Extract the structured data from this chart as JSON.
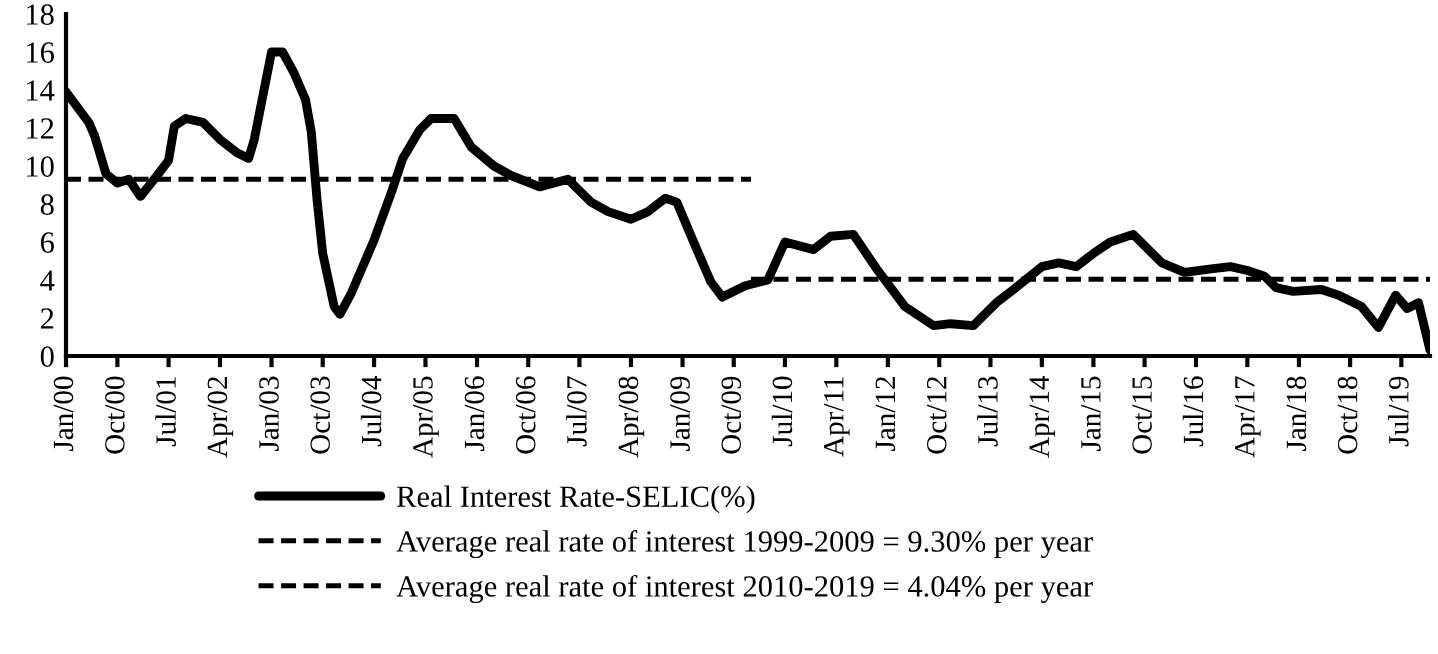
{
  "chart_data": {
    "type": "line",
    "xlim": [
      "2000-01",
      "2019-12"
    ],
    "ylim": [
      0,
      18
    ],
    "yticks": [
      0,
      2,
      4,
      6,
      8,
      10,
      12,
      14,
      16,
      18
    ],
    "xticks": [
      {
        "value": "2000-01",
        "label": "Jan/00"
      },
      {
        "value": "2000-10",
        "label": "Oct/00"
      },
      {
        "value": "2001-07",
        "label": "Jul/01"
      },
      {
        "value": "2002-04",
        "label": "Apr/02"
      },
      {
        "value": "2003-01",
        "label": "Jan/03"
      },
      {
        "value": "2003-10",
        "label": "Oct/03"
      },
      {
        "value": "2004-07",
        "label": "Jul/04"
      },
      {
        "value": "2005-04",
        "label": "Apr/05"
      },
      {
        "value": "2006-01",
        "label": "Jan/06"
      },
      {
        "value": "2006-10",
        "label": "Oct/06"
      },
      {
        "value": "2007-07",
        "label": "Jul/07"
      },
      {
        "value": "2008-04",
        "label": "Apr/08"
      },
      {
        "value": "2009-01",
        "label": "Jan/09"
      },
      {
        "value": "2009-10",
        "label": "Oct/09"
      },
      {
        "value": "2010-07",
        "label": "Jul/10"
      },
      {
        "value": "2011-04",
        "label": "Apr/11"
      },
      {
        "value": "2012-01",
        "label": "Jan/12"
      },
      {
        "value": "2012-10",
        "label": "Oct/12"
      },
      {
        "value": "2013-07",
        "label": "Jul/13"
      },
      {
        "value": "2014-04",
        "label": "Apr/14"
      },
      {
        "value": "2015-01",
        "label": "Jan/15"
      },
      {
        "value": "2015-10",
        "label": "Oct/15"
      },
      {
        "value": "2016-07",
        "label": "Jul/16"
      },
      {
        "value": "2017-04",
        "label": "Apr/17"
      },
      {
        "value": "2018-01",
        "label": "Jan/18"
      },
      {
        "value": "2018-10",
        "label": "Oct/18"
      },
      {
        "value": "2019-07",
        "label": "Jul/19"
      }
    ],
    "grid": false,
    "legend": "bottom",
    "marker": "none",
    "series": [
      {
        "name": "Real Interest Rate-SELIC(%)",
        "color": "#000000",
        "line_style": "solid",
        "x": [
          "2000-01",
          "2000-05",
          "2000-06",
          "2000-08",
          "2000-10",
          "2000-12",
          "2001-02",
          "2001-05",
          "2001-07",
          "2001-08",
          "2001-10",
          "2002-01",
          "2002-04",
          "2002-07",
          "2002-09",
          "2002-10",
          "2003-01",
          "2003-03",
          "2003-05",
          "2003-07",
          "2003-08",
          "2003-09",
          "2003-10",
          "2003-12",
          "2004-01",
          "2004-03",
          "2004-07",
          "2004-10",
          "2004-12",
          "2005-03",
          "2005-05",
          "2005-08",
          "2005-09",
          "2005-12",
          "2006-04",
          "2006-07",
          "2006-12",
          "2007-05",
          "2007-09",
          "2007-12",
          "2008-04",
          "2008-07",
          "2008-10",
          "2008-12",
          "2009-03",
          "2009-06",
          "2009-08",
          "2009-12",
          "2010-04",
          "2010-07",
          "2010-12",
          "2011-03",
          "2011-07",
          "2011-11",
          "2012-04",
          "2012-09",
          "2012-12",
          "2013-04",
          "2013-08",
          "2013-11",
          "2014-04",
          "2014-07",
          "2014-10",
          "2015-01",
          "2015-04",
          "2015-08",
          "2016-01",
          "2016-05",
          "2016-10",
          "2017-01",
          "2017-04",
          "2017-07",
          "2017-09",
          "2017-12",
          "2018-05",
          "2018-08",
          "2018-12",
          "2019-03",
          "2019-06",
          "2019-08",
          "2019-10",
          "2019-12"
        ],
        "values": [
          13.9,
          12.3,
          11.6,
          9.6,
          9.1,
          9.3,
          8.4,
          9.5,
          10.3,
          12.1,
          12.5,
          12.3,
          11.4,
          10.7,
          10.4,
          11.4,
          16.0,
          16.0,
          14.9,
          13.5,
          11.8,
          8.2,
          5.4,
          2.6,
          2.2,
          3.3,
          6.1,
          8.6,
          10.4,
          11.9,
          12.5,
          12.5,
          12.5,
          11.0,
          10.0,
          9.5,
          8.9,
          9.3,
          8.1,
          7.6,
          7.2,
          7.6,
          8.3,
          8.1,
          6.0,
          3.9,
          3.1,
          3.7,
          4.0,
          6.0,
          5.6,
          6.3,
          6.4,
          4.6,
          2.6,
          1.6,
          1.7,
          1.6,
          2.8,
          3.5,
          4.7,
          4.9,
          4.7,
          5.4,
          6.0,
          6.4,
          4.9,
          4.4,
          4.6,
          4.7,
          4.5,
          4.2,
          3.6,
          3.4,
          3.5,
          3.2,
          2.6,
          1.5,
          3.2,
          2.5,
          2.8,
          0.3
        ]
      },
      {
        "name": "Average real rate of interest 1999-2009 = 9.30% per year",
        "color": "#000000",
        "line_style": "dashed",
        "x": [
          "2000-01",
          "2010-01"
        ],
        "values": [
          9.3,
          9.3
        ]
      },
      {
        "name": "Average real rate of interest 2010-2019 = 4.04% per year",
        "color": "#000000",
        "line_style": "dashed",
        "x": [
          "2010-01",
          "2019-12"
        ],
        "values": [
          4.04,
          4.04
        ]
      }
    ]
  }
}
